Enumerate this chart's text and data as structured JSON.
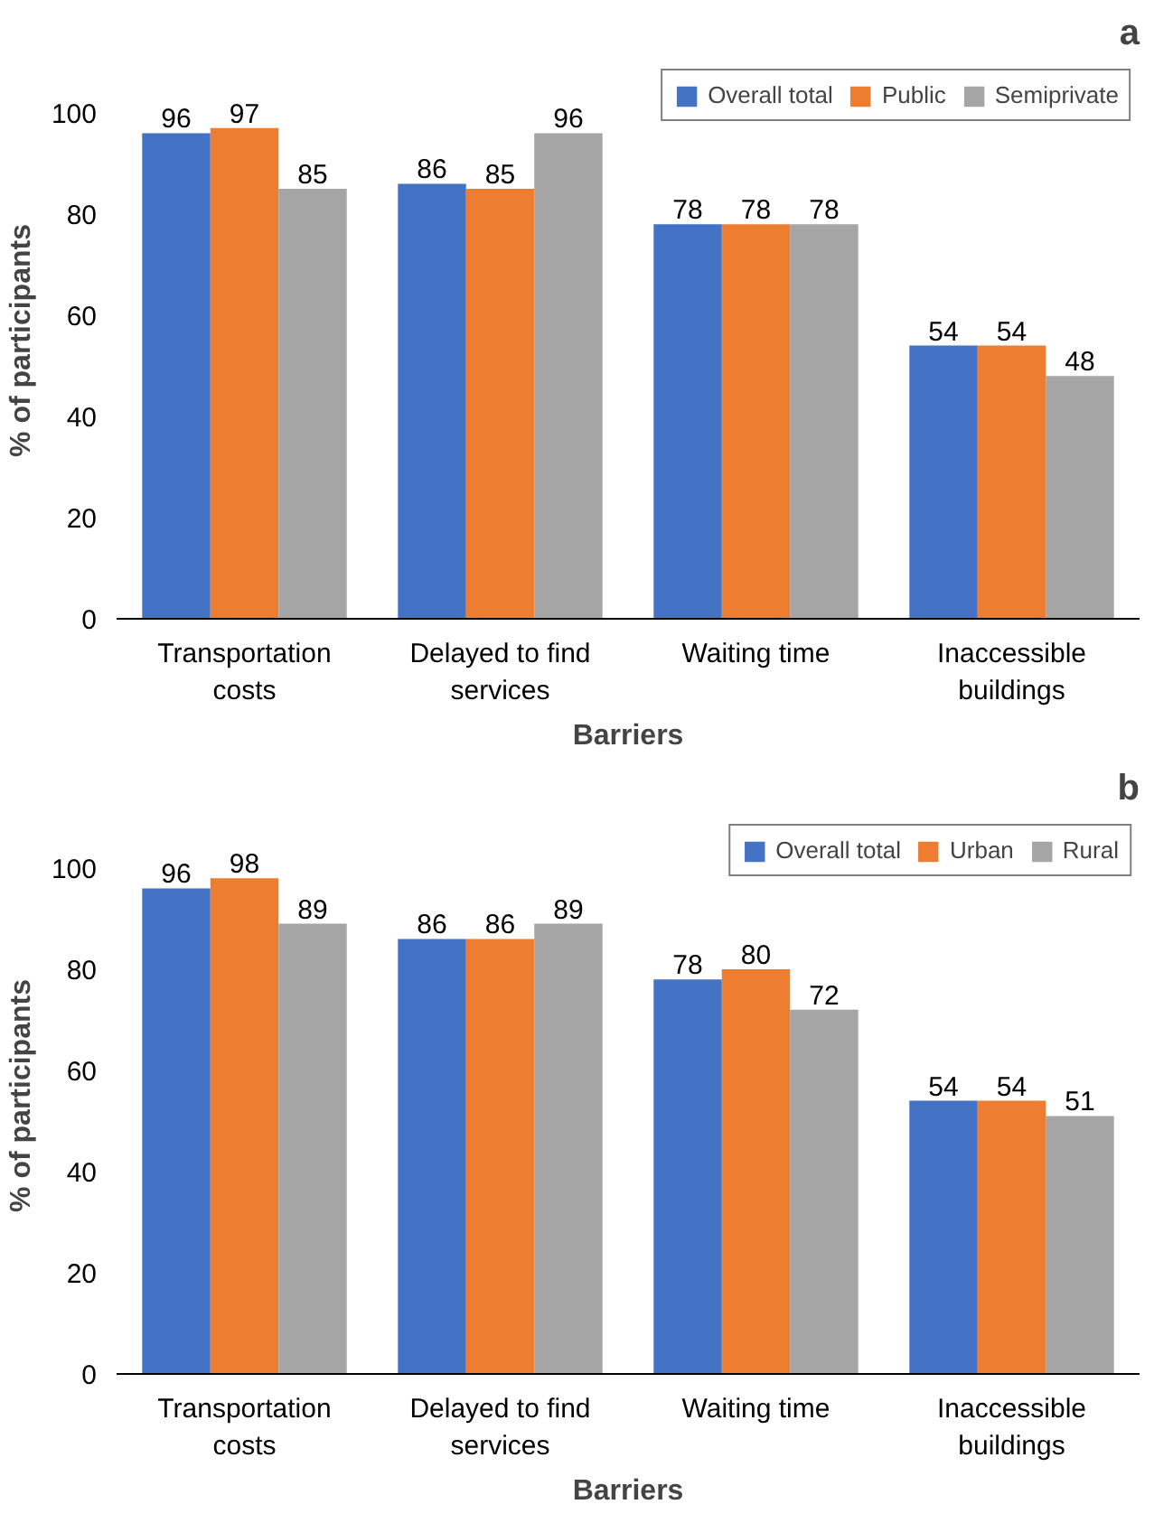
{
  "chart_data": [
    {
      "type": "bar",
      "annotations": [
        "a"
      ],
      "xlabel": "Barriers",
      "ylabel": "% of participants",
      "categories": [
        "Transportation costs",
        "Delayed to find services",
        "Waiting time",
        "Inaccessible buildings"
      ],
      "series": [
        {
          "name": "Overall total",
          "color": "#4472c4",
          "values": [
            96,
            86,
            78,
            54
          ]
        },
        {
          "name": "Public",
          "color": "#ed7d31",
          "values": [
            97,
            85,
            78,
            54
          ]
        },
        {
          "name": "Semiprivate",
          "color": "#a5a5a5",
          "values": [
            85,
            96,
            78,
            48
          ]
        }
      ],
      "ylim": [
        0,
        110
      ],
      "yticks": [
        0,
        20,
        40,
        60,
        80,
        100
      ],
      "data_labels": true,
      "legend": "top right",
      "grid": false
    },
    {
      "type": "bar",
      "annotations": [
        "b"
      ],
      "xlabel": "Barriers",
      "ylabel": "% of participants",
      "categories": [
        "Transportation costs",
        "Delayed to find services",
        "Waiting time",
        "Inaccessible buildings"
      ],
      "series": [
        {
          "name": "Overall total",
          "color": "#4472c4",
          "values": [
            96,
            86,
            78,
            54
          ]
        },
        {
          "name": "Urban",
          "color": "#ed7d31",
          "values": [
            98,
            86,
            80,
            54
          ]
        },
        {
          "name": "Rural",
          "color": "#a5a5a5",
          "values": [
            89,
            89,
            72,
            51
          ]
        }
      ],
      "ylim": [
        0,
        110
      ],
      "yticks": [
        0,
        20,
        40,
        60,
        80,
        100
      ],
      "data_labels": true,
      "legend": "top right",
      "grid": false
    }
  ]
}
